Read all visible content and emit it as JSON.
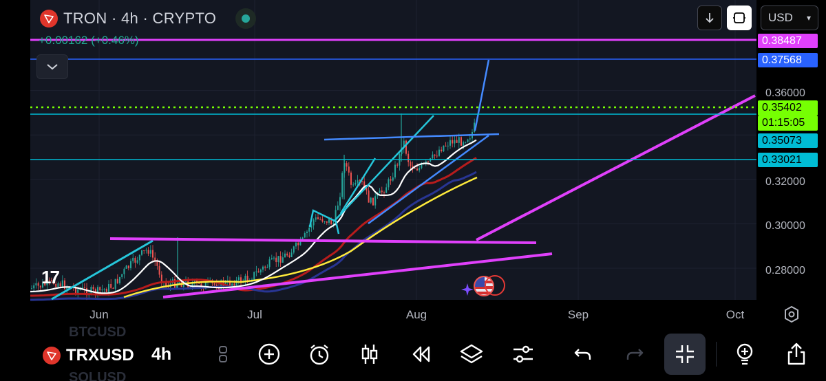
{
  "header": {
    "symbol_name": "TRON",
    "interval": "4h",
    "market": "CRYPTO",
    "title_separator": " · ",
    "change": "+0.00162 (+0.46%)"
  },
  "controls": {
    "currency": "USD",
    "currency_chevron": "▾"
  },
  "price_axis": {
    "ticks": [
      "0.36000",
      "0.32000",
      "0.30000",
      "0.28000"
    ],
    "tags": [
      {
        "value": "0.38487",
        "color": "#e040fb"
      },
      {
        "value": "0.37568",
        "color": "#2962ff"
      },
      {
        "value": "0.35402",
        "color": "#76ff03"
      },
      {
        "value": "0.35073",
        "color": "#00bcd4"
      },
      {
        "value": "0.33021",
        "color": "#00bcd4"
      }
    ],
    "countdown": "01:15:05"
  },
  "time_axis": {
    "labels": [
      "Jun",
      "Jul",
      "Aug",
      "Sep",
      "Oct"
    ]
  },
  "chart_data": {
    "type": "candlestick",
    "price_range": [
      0.27,
      0.39
    ],
    "levels": [
      0.38487,
      0.37568,
      0.35402,
      0.35073,
      0.33021
    ],
    "last_price": 0.35402
  },
  "toolbar": {
    "symbol": "TRXUSD",
    "interval": "4h",
    "ghost_top": "BTCUSD",
    "ghost_bottom": "SOLUSD"
  },
  "watermark": "17",
  "colors": {
    "up": "#26a69a",
    "down": "#ef5350",
    "magenta": "#e040fb",
    "blue": "#2962ff",
    "cyan": "#00bcd4",
    "lime": "#76ff03",
    "yellow": "#ffeb3b"
  }
}
